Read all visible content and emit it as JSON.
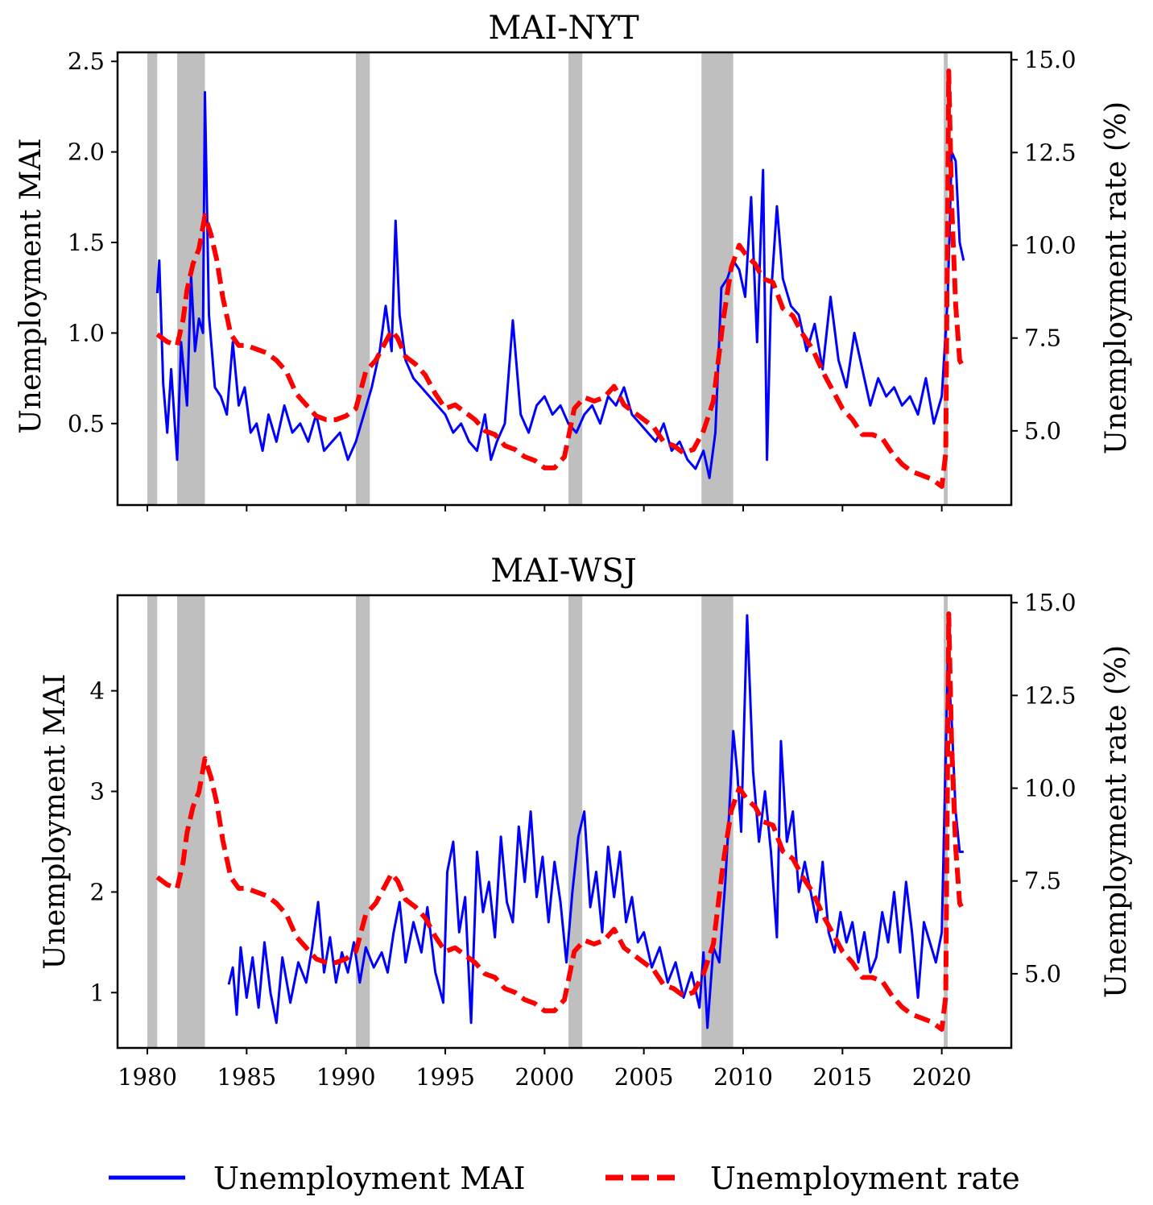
{
  "chart_data": [
    {
      "type": "line",
      "title": "MAI-NYT",
      "xlabel": "",
      "ylabel_left": "Unemployment MAI",
      "ylabel_right": "Unemployment rate (%)",
      "xlim": [
        1978.5,
        2023.5
      ],
      "ylim_left": [
        0.05,
        2.55
      ],
      "ylim_right": [
        3.0,
        15.2
      ],
      "xticks": [
        "1980",
        "1985",
        "1990",
        "1995",
        "2000",
        "2005",
        "2010",
        "2015",
        "2020"
      ],
      "yticks_left": [
        "0.5",
        "1.0",
        "1.5",
        "2.0",
        "2.5"
      ],
      "yticks_right": [
        "5.0",
        "7.5",
        "10.0",
        "12.5",
        "15.0"
      ],
      "recessions": [
        [
          1980.0,
          1980.5
        ],
        [
          1981.5,
          1982.9
        ],
        [
          1990.5,
          1991.2
        ],
        [
          2001.2,
          2001.9
        ],
        [
          2007.9,
          2009.5
        ],
        [
          2020.1,
          2020.3
        ]
      ],
      "series": [
        {
          "name": "Unemployment MAI",
          "axis": "left",
          "style": "solid",
          "x": [
            1980.5,
            1980.6,
            1980.8,
            1981.0,
            1981.2,
            1981.5,
            1981.7,
            1982.0,
            1982.2,
            1982.4,
            1982.6,
            1982.8,
            1982.9,
            1983.1,
            1983.4,
            1983.7,
            1984.0,
            1984.3,
            1984.6,
            1984.9,
            1985.2,
            1985.5,
            1985.8,
            1986.1,
            1986.5,
            1986.9,
            1987.3,
            1987.7,
            1988.1,
            1988.5,
            1988.9,
            1989.3,
            1989.7,
            1990.1,
            1990.5,
            1990.9,
            1991.3,
            1991.7,
            1992.0,
            1992.3,
            1992.5,
            1992.7,
            1993.0,
            1993.4,
            1993.8,
            1994.2,
            1994.6,
            1995.0,
            1995.4,
            1995.8,
            1996.2,
            1996.6,
            1997.0,
            1997.3,
            1997.6,
            1998.0,
            1998.4,
            1998.8,
            1999.2,
            1999.6,
            2000.0,
            2000.4,
            2000.8,
            2001.2,
            2001.6,
            2002.0,
            2002.4,
            2002.8,
            2003.2,
            2003.6,
            2004.0,
            2004.4,
            2004.8,
            2005.2,
            2005.6,
            2006.0,
            2006.4,
            2006.8,
            2007.2,
            2007.6,
            2008.0,
            2008.3,
            2008.6,
            2008.9,
            2009.2,
            2009.5,
            2009.8,
            2010.1,
            2010.4,
            2010.7,
            2011.0,
            2011.2,
            2011.4,
            2011.7,
            2012.0,
            2012.4,
            2012.8,
            2013.2,
            2013.6,
            2014.0,
            2014.4,
            2014.8,
            2015.2,
            2015.6,
            2016.0,
            2016.4,
            2016.8,
            2017.2,
            2017.6,
            2018.0,
            2018.4,
            2018.8,
            2019.2,
            2019.6,
            2020.0,
            2020.3,
            2020.5,
            2020.7,
            2020.9,
            2021.1
          ],
          "y": [
            1.22,
            1.4,
            0.72,
            0.45,
            0.8,
            0.3,
            0.95,
            0.6,
            1.32,
            0.9,
            1.08,
            1.0,
            2.33,
            1.1,
            0.7,
            0.65,
            0.55,
            0.95,
            0.6,
            0.7,
            0.45,
            0.5,
            0.35,
            0.55,
            0.4,
            0.6,
            0.45,
            0.5,
            0.4,
            0.55,
            0.35,
            0.4,
            0.45,
            0.3,
            0.4,
            0.55,
            0.7,
            0.9,
            1.15,
            0.9,
            1.62,
            1.1,
            0.85,
            0.75,
            0.7,
            0.65,
            0.6,
            0.55,
            0.45,
            0.5,
            0.4,
            0.35,
            0.55,
            0.3,
            0.4,
            0.5,
            1.07,
            0.55,
            0.45,
            0.6,
            0.65,
            0.55,
            0.6,
            0.5,
            0.45,
            0.55,
            0.6,
            0.5,
            0.65,
            0.6,
            0.7,
            0.55,
            0.5,
            0.45,
            0.4,
            0.5,
            0.35,
            0.4,
            0.3,
            0.25,
            0.35,
            0.2,
            0.45,
            1.25,
            1.3,
            1.4,
            1.35,
            1.2,
            1.75,
            0.95,
            1.9,
            0.3,
            1.2,
            1.7,
            1.3,
            1.15,
            1.1,
            0.9,
            1.05,
            0.8,
            1.2,
            0.85,
            0.7,
            1.0,
            0.8,
            0.6,
            0.75,
            0.65,
            0.7,
            0.6,
            0.65,
            0.55,
            0.75,
            0.5,
            0.65,
            1.2,
            2.0,
            1.95,
            1.5,
            1.4
          ]
        },
        {
          "name": "Unemployment rate",
          "axis": "right",
          "style": "dashed",
          "x": [
            1980.5,
            1981.0,
            1981.5,
            1981.8,
            1982.0,
            1982.3,
            1982.6,
            1982.9,
            1983.2,
            1983.5,
            1983.8,
            1984.2,
            1984.6,
            1985.0,
            1985.5,
            1986.0,
            1986.5,
            1987.0,
            1987.5,
            1988.0,
            1988.5,
            1989.0,
            1989.5,
            1990.0,
            1990.5,
            1991.0,
            1991.5,
            1992.0,
            1992.3,
            1992.6,
            1993.0,
            1993.5,
            1994.0,
            1994.5,
            1995.0,
            1995.5,
            1996.0,
            1996.5,
            1997.0,
            1997.5,
            1998.0,
            1998.5,
            1999.0,
            1999.5,
            2000.0,
            2000.5,
            2001.0,
            2001.5,
            2002.0,
            2002.5,
            2003.0,
            2003.5,
            2004.0,
            2004.5,
            2005.0,
            2005.5,
            2006.0,
            2006.5,
            2007.0,
            2007.5,
            2008.0,
            2008.5,
            2009.0,
            2009.4,
            2009.8,
            2010.2,
            2010.6,
            2011.0,
            2011.5,
            2012.0,
            2012.5,
            2013.0,
            2013.5,
            2014.0,
            2014.5,
            2015.0,
            2015.5,
            2016.0,
            2016.5,
            2017.0,
            2017.5,
            2018.0,
            2018.5,
            2019.0,
            2019.5,
            2020.0,
            2020.2,
            2020.35,
            2020.5,
            2020.7,
            2020.9,
            2021.1
          ],
          "y": [
            7.6,
            7.4,
            7.3,
            8.0,
            8.8,
            9.5,
            9.9,
            10.8,
            10.3,
            9.6,
            8.6,
            7.6,
            7.3,
            7.3,
            7.2,
            7.1,
            6.9,
            6.6,
            6.0,
            5.7,
            5.4,
            5.3,
            5.3,
            5.4,
            5.6,
            6.6,
            6.9,
            7.4,
            7.7,
            7.5,
            7.0,
            6.8,
            6.5,
            6.0,
            5.6,
            5.7,
            5.5,
            5.3,
            5.0,
            4.9,
            4.6,
            4.5,
            4.3,
            4.2,
            4.0,
            4.0,
            4.3,
            5.6,
            5.9,
            5.8,
            5.9,
            6.2,
            5.7,
            5.5,
            5.3,
            5.1,
            4.7,
            4.6,
            4.4,
            4.5,
            5.0,
            5.8,
            8.0,
            9.4,
            10.0,
            9.7,
            9.5,
            9.1,
            9.0,
            8.3,
            8.1,
            7.6,
            7.2,
            6.6,
            6.1,
            5.6,
            5.3,
            4.9,
            4.9,
            4.8,
            4.4,
            4.1,
            3.9,
            3.8,
            3.7,
            3.5,
            4.4,
            14.7,
            11.1,
            8.4,
            6.9,
            6.7
          ]
        }
      ]
    },
    {
      "type": "line",
      "title": "MAI-WSJ",
      "xlabel": "",
      "ylabel_left": "Unemployment MAI",
      "ylabel_right": "Unemployment rate (%)",
      "xlim": [
        1978.5,
        2023.5
      ],
      "ylim_left": [
        0.45,
        4.95
      ],
      "ylim_right": [
        3.0,
        15.2
      ],
      "xticks": [
        "1980",
        "1985",
        "1990",
        "1995",
        "2000",
        "2005",
        "2010",
        "2015",
        "2020"
      ],
      "yticks_left": [
        "1",
        "2",
        "3",
        "4"
      ],
      "yticks_right": [
        "5.0",
        "7.5",
        "10.0",
        "12.5",
        "15.0"
      ],
      "recessions": [
        [
          1980.0,
          1980.5
        ],
        [
          1981.5,
          1982.9
        ],
        [
          1990.5,
          1991.2
        ],
        [
          2001.2,
          2001.9
        ],
        [
          2007.9,
          2009.5
        ],
        [
          2020.1,
          2020.3
        ]
      ],
      "series": [
        {
          "name": "Unemployment MAI",
          "axis": "left",
          "style": "solid",
          "x": [
            1984.1,
            1984.3,
            1984.5,
            1984.7,
            1985.0,
            1985.3,
            1985.6,
            1985.9,
            1986.2,
            1986.5,
            1986.8,
            1987.2,
            1987.6,
            1988.0,
            1988.3,
            1988.6,
            1988.9,
            1989.2,
            1989.5,
            1989.8,
            1990.1,
            1990.4,
            1990.7,
            1991.0,
            1991.4,
            1991.8,
            1992.1,
            1992.4,
            1992.7,
            1993.0,
            1993.4,
            1993.8,
            1994.1,
            1994.5,
            1994.9,
            1995.1,
            1995.4,
            1995.7,
            1996.0,
            1996.3,
            1996.6,
            1996.9,
            1997.2,
            1997.5,
            1997.8,
            1998.1,
            1998.4,
            1998.7,
            1999.0,
            1999.3,
            1999.6,
            1999.9,
            2000.2,
            2000.5,
            2000.8,
            2001.1,
            2001.4,
            2001.7,
            2002.0,
            2002.3,
            2002.6,
            2002.9,
            2003.2,
            2003.5,
            2003.8,
            2004.1,
            2004.4,
            2004.7,
            2005.0,
            2005.4,
            2005.8,
            2006.2,
            2006.6,
            2007.0,
            2007.4,
            2007.8,
            2008.0,
            2008.2,
            2008.5,
            2008.8,
            2009.1,
            2009.3,
            2009.5,
            2009.7,
            2009.9,
            2010.2,
            2010.5,
            2010.8,
            2011.1,
            2011.4,
            2011.7,
            2011.9,
            2012.2,
            2012.5,
            2012.8,
            2013.1,
            2013.4,
            2013.7,
            2014.0,
            2014.3,
            2014.6,
            2014.9,
            2015.2,
            2015.5,
            2015.8,
            2016.1,
            2016.4,
            2016.7,
            2017.0,
            2017.3,
            2017.6,
            2017.9,
            2018.2,
            2018.5,
            2018.8,
            2019.1,
            2019.4,
            2019.7,
            2020.0,
            2020.3,
            2020.5,
            2020.7,
            2020.9,
            2021.1
          ],
          "y": [
            1.08,
            1.25,
            0.78,
            1.45,
            0.95,
            1.35,
            0.85,
            1.5,
            1.0,
            0.7,
            1.35,
            0.9,
            1.3,
            1.1,
            1.45,
            1.9,
            1.2,
            1.55,
            1.1,
            1.4,
            1.2,
            1.5,
            1.1,
            1.45,
            1.25,
            1.4,
            1.2,
            1.6,
            1.9,
            1.3,
            1.7,
            1.4,
            1.85,
            1.2,
            0.9,
            2.2,
            2.5,
            1.6,
            1.95,
            0.7,
            2.4,
            1.8,
            2.1,
            1.55,
            2.55,
            1.9,
            1.7,
            2.65,
            2.1,
            2.8,
            1.95,
            2.35,
            1.7,
            2.3,
            1.9,
            1.3,
            2.0,
            2.55,
            2.8,
            1.85,
            2.2,
            1.6,
            2.45,
            1.95,
            2.4,
            1.7,
            1.95,
            1.5,
            1.6,
            1.25,
            1.45,
            1.1,
            1.3,
            0.95,
            1.2,
            0.85,
            1.4,
            0.65,
            1.45,
            1.3,
            2.1,
            2.8,
            3.6,
            3.2,
            2.6,
            4.75,
            3.2,
            2.5,
            3.0,
            2.4,
            1.55,
            3.5,
            2.5,
            2.8,
            2.0,
            2.3,
            2.0,
            1.7,
            2.3,
            1.6,
            1.4,
            1.8,
            1.5,
            1.7,
            1.3,
            1.6,
            1.2,
            1.35,
            1.8,
            1.5,
            2.0,
            1.4,
            2.1,
            1.6,
            0.95,
            1.7,
            1.5,
            1.3,
            1.6,
            4.3,
            3.7,
            2.8,
            2.4,
            2.4
          ]
        },
        {
          "name": "Unemployment rate",
          "axis": "right",
          "style": "dashed",
          "x": [
            1980.5,
            1981.0,
            1981.5,
            1981.8,
            1982.0,
            1982.3,
            1982.6,
            1982.9,
            1983.2,
            1983.5,
            1983.8,
            1984.2,
            1984.6,
            1985.0,
            1985.5,
            1986.0,
            1986.5,
            1987.0,
            1987.5,
            1988.0,
            1988.5,
            1989.0,
            1989.5,
            1990.0,
            1990.5,
            1991.0,
            1991.5,
            1992.0,
            1992.3,
            1992.6,
            1993.0,
            1993.5,
            1994.0,
            1994.5,
            1995.0,
            1995.5,
            1996.0,
            1996.5,
            1997.0,
            1997.5,
            1998.0,
            1998.5,
            1999.0,
            1999.5,
            2000.0,
            2000.5,
            2001.0,
            2001.5,
            2002.0,
            2002.5,
            2003.0,
            2003.5,
            2004.0,
            2004.5,
            2005.0,
            2005.5,
            2006.0,
            2006.5,
            2007.0,
            2007.5,
            2008.0,
            2008.5,
            2009.0,
            2009.4,
            2009.8,
            2010.2,
            2010.6,
            2011.0,
            2011.5,
            2012.0,
            2012.5,
            2013.0,
            2013.5,
            2014.0,
            2014.5,
            2015.0,
            2015.5,
            2016.0,
            2016.5,
            2017.0,
            2017.5,
            2018.0,
            2018.5,
            2019.0,
            2019.5,
            2020.0,
            2020.2,
            2020.35,
            2020.5,
            2020.7,
            2020.9,
            2021.1
          ],
          "y": [
            7.6,
            7.4,
            7.3,
            8.0,
            8.8,
            9.5,
            9.9,
            10.8,
            10.3,
            9.6,
            8.6,
            7.6,
            7.3,
            7.3,
            7.2,
            7.1,
            6.9,
            6.6,
            6.0,
            5.7,
            5.4,
            5.3,
            5.3,
            5.4,
            5.6,
            6.6,
            6.9,
            7.4,
            7.7,
            7.5,
            7.0,
            6.8,
            6.5,
            6.0,
            5.6,
            5.7,
            5.5,
            5.3,
            5.0,
            4.9,
            4.6,
            4.5,
            4.3,
            4.2,
            4.0,
            4.0,
            4.3,
            5.6,
            5.9,
            5.8,
            5.9,
            6.2,
            5.7,
            5.5,
            5.3,
            5.1,
            4.7,
            4.6,
            4.4,
            4.5,
            5.0,
            5.8,
            8.0,
            9.4,
            10.0,
            9.7,
            9.5,
            9.1,
            9.0,
            8.3,
            8.1,
            7.6,
            7.2,
            6.6,
            6.1,
            5.6,
            5.3,
            4.9,
            4.9,
            4.8,
            4.4,
            4.1,
            3.9,
            3.8,
            3.7,
            3.5,
            4.4,
            14.7,
            11.1,
            8.4,
            6.9,
            6.7
          ]
        }
      ]
    }
  ],
  "legend": {
    "placement": "bottom-center",
    "items": [
      {
        "label": "Unemployment MAI",
        "color": "#0000ff",
        "style": "solid"
      },
      {
        "label": "Unemployment rate",
        "color": "#ff0000",
        "style": "dashed"
      }
    ]
  },
  "colors": {
    "mai": "#0000ff",
    "rate": "#ff0000",
    "recession": "#bfbfbf"
  }
}
